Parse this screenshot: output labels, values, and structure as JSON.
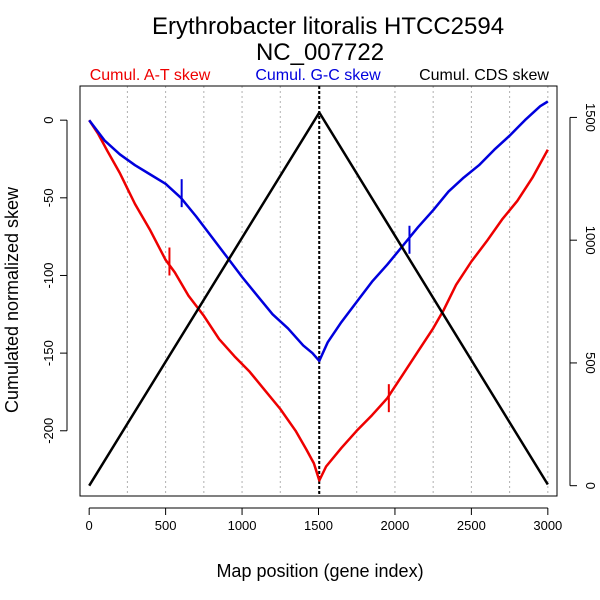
{
  "chart_data": {
    "type": "line",
    "title": "Erythrobacter litoralis HTCC2594",
    "subtitle": "NC_007722",
    "xlabel": "Map position (gene index)",
    "ylabel": "Cumulated normalized skew",
    "xlim": [
      -60,
      3060
    ],
    "ylim": [
      -242,
      22
    ],
    "y2lim": [
      -42,
      1628
    ],
    "x_ticks": [
      0,
      500,
      1000,
      1500,
      2000,
      2500,
      3000
    ],
    "y_ticks": [
      0,
      -50,
      -100,
      -150,
      -200
    ],
    "y2_ticks": [
      0,
      500,
      1000,
      1500
    ],
    "grid_x": [
      250,
      500,
      750,
      1000,
      1250,
      1500,
      1750,
      2000,
      2250,
      2500,
      2750,
      3000
    ],
    "origin_line_x": 1505,
    "colors": {
      "at": "#ee0000",
      "gc": "#0000dd",
      "cds": "#000000",
      "grid": "#b0b0b0"
    },
    "series": [
      {
        "key": "at",
        "name": "Cumul. A-T skew",
        "axis": "left",
        "x": [
          0,
          60,
          120,
          200,
          300,
          400,
          500,
          560,
          650,
          750,
          850,
          950,
          1050,
          1150,
          1250,
          1350,
          1420,
          1470,
          1505,
          1550,
          1650,
          1750,
          1850,
          1950,
          2050,
          2150,
          2250,
          2320,
          2400,
          2500,
          2600,
          2700,
          2800,
          2900,
          3000
        ],
        "values": [
          0,
          -9,
          -20,
          -34,
          -54,
          -71,
          -90,
          -98,
          -113,
          -126,
          -141,
          -152,
          -162,
          -174,
          -186,
          -200,
          -212,
          -221,
          -232,
          -223,
          -211,
          -200,
          -190,
          -179,
          -164,
          -149,
          -134,
          -122,
          -106,
          -91,
          -78,
          -64,
          -52,
          -37,
          -19
        ]
      },
      {
        "key": "gc",
        "name": "Cumul. G-C skew",
        "axis": "left",
        "x": [
          0,
          100,
          200,
          300,
          400,
          500,
          600,
          700,
          800,
          900,
          1000,
          1100,
          1200,
          1300,
          1400,
          1460,
          1505,
          1560,
          1650,
          1750,
          1850,
          1950,
          2050,
          2150,
          2250,
          2350,
          2450,
          2550,
          2650,
          2750,
          2850,
          2950,
          3000
        ],
        "values": [
          0,
          -13,
          -22,
          -29,
          -35,
          -41,
          -50,
          -62,
          -75,
          -88,
          -101,
          -113,
          -125,
          -134,
          -145,
          -150,
          -155,
          -143,
          -130,
          -117,
          -104,
          -93,
          -81,
          -69,
          -58,
          -46,
          -37,
          -29,
          -19,
          -10,
          0,
          9,
          12
        ]
      },
      {
        "key": "cds",
        "name": "Cumul. CDS skew",
        "axis": "right",
        "x": [
          0,
          1505,
          3000
        ],
        "values": [
          0,
          1520,
          5
        ]
      }
    ],
    "markers": [
      {
        "series": "at",
        "x": 525,
        "y": -91
      },
      {
        "series": "at",
        "x": 1960,
        "y": -179
      },
      {
        "series": "gc",
        "x": 605,
        "y": -47
      },
      {
        "series": "gc",
        "x": 2095,
        "y": -77
      }
    ]
  }
}
